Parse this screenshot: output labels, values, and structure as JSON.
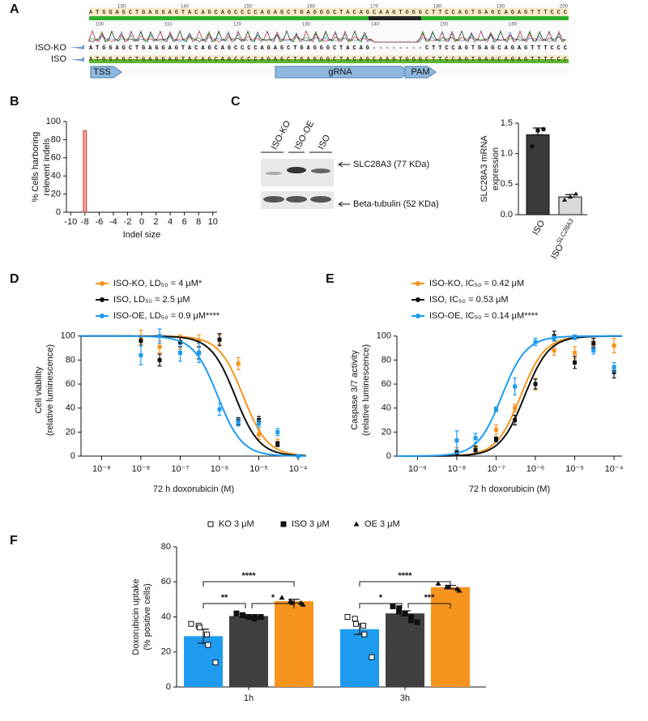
{
  "alignment": {
    "panel": "A",
    "ruler": [
      130,
      140,
      150,
      160,
      170,
      180,
      190,
      200
    ],
    "trace_ruler": [
      100,
      110,
      120,
      130,
      140,
      150,
      160
    ],
    "reference": "ATGGAGCTGAGGAGTACAGCAGCCCCAGAGCTGAGGGCTACAGCAAGTGGGCTTCCAGTGAGCAGAGTTTCCC",
    "rows": [
      {
        "name": "ISO-KO",
        "sequence": "ATGGAGCTGAGGAGTACAGCAGCCCCAGAGCTGAGGGCTACAG--------CTTCCAGTGAGCAGAGTTTCCC"
      },
      {
        "name": "ISO",
        "sequence": "ATGGAGCTGAGGAGTACAGCAGCCCCAGAGCTGAGGGCTACAGCAAGTGGGCTTCCAGTGAGCAGAGTTTCCC"
      }
    ],
    "features": [
      "TSS",
      "gRNA",
      "PAM"
    ]
  },
  "blot": {
    "panel": "C",
    "lanes": [
      "ISO-KO",
      "ISO-OE",
      "ISO"
    ],
    "bands": [
      "SLC28A3 (77 KDa)",
      "Beta-tubulin (52 KDa)"
    ]
  },
  "chart_data": [
    {
      "type": "bar",
      "panel": "B",
      "ylabel": [
        "% Cells harboring",
        "relevent indels"
      ],
      "xlabel": "Indel size",
      "x": [
        -8
      ],
      "values": [
        90
      ],
      "color": "#f4a6a0",
      "edge_color": "#c0392b",
      "xlim": [
        -10.6,
        10.6
      ],
      "xticks": [
        -10,
        -8,
        -6,
        -4,
        -2,
        0,
        2,
        4,
        6,
        8,
        10
      ],
      "ylim": [
        0,
        100
      ],
      "yticks": [
        0,
        20,
        40,
        60,
        80,
        100
      ]
    },
    {
      "type": "bar",
      "ylabel": [
        "SLC28A3 mRNA",
        "expression"
      ],
      "categories": [
        "ISO",
        "ISO"
      ],
      "category_superscripts": [
        null,
        "SLC28A3"
      ],
      "values": [
        1.31,
        0.29
      ],
      "errors": [
        0.11,
        0.04
      ],
      "colors": [
        "#3a3a3a",
        "#d9d9d9"
      ],
      "points": [
        [
          1.12,
          1.38,
          1.4
        ],
        [
          0.24,
          0.29,
          0.34
        ]
      ],
      "ylim": [
        0,
        1.5
      ],
      "yticks": [
        {
          "value": 0,
          "label": "0.0"
        },
        {
          "value": 0.5,
          "label": "0.5"
        },
        {
          "value": 1,
          "label": "1.0"
        },
        {
          "value": 1.5,
          "label": "1.5"
        }
      ]
    },
    {
      "type": "scatter",
      "panel": "D",
      "ylabel": [
        "Cell viability",
        "(relative luminescence)"
      ],
      "xlabel": "72 h doxorubicin (M)",
      "xscale": "log",
      "fit_direction": "down",
      "x": [
        1e-08,
        3e-08,
        1e-07,
        3e-07,
        1e-06,
        3e-06,
        1e-05,
        3e-05,
        0.0001
      ],
      "series": [
        {
          "name": "ISO-KO, LD₅₀ = 4 μM*",
          "color": "#f7941d",
          "ec50": 4e-06,
          "values": [
            99,
            91,
            95,
            96,
            97,
            77,
            18,
            11,
            0
          ],
          "errors": [
            6,
            5,
            6,
            5,
            4,
            5,
            4,
            3,
            1
          ]
        },
        {
          "name": "ISO, LD₅₀ = 2.5 μM",
          "color": "#111111",
          "ec50": 2.5e-06,
          "values": [
            96,
            80,
            95,
            86,
            97,
            29,
            30,
            10,
            0
          ],
          "errors": [
            4,
            5,
            4,
            5,
            5,
            3,
            3,
            2,
            1
          ]
        },
        {
          "name": "ISO-OE, LD₅₀ = 0.9 μM****",
          "color": "#1e9bef",
          "ec50": 9e-07,
          "values": [
            84,
            100,
            86,
            86,
            39,
            28,
            27,
            20,
            0
          ],
          "errors": [
            8,
            6,
            7,
            8,
            5,
            3,
            3,
            3,
            1
          ]
        }
      ],
      "xlim": [
        3e-10,
        0.00016
      ],
      "xticks": [
        {
          "value": 1e-09,
          "label": "10⁻⁹"
        },
        {
          "value": 1e-08,
          "label": "10⁻⁸"
        },
        {
          "value": 1e-07,
          "label": "10⁻⁷"
        },
        {
          "value": 1e-06,
          "label": "10⁻⁶"
        },
        {
          "value": 1e-05,
          "label": "10⁻⁵"
        },
        {
          "value": 0.0001,
          "label": "10⁻⁴"
        }
      ],
      "ylim": [
        0,
        110
      ],
      "yticks": [
        0,
        20,
        40,
        60,
        80,
        100
      ]
    },
    {
      "type": "scatter",
      "panel": "E",
      "ylabel": [
        "Caspase 3/7 activity",
        "(relative luminescence)"
      ],
      "xlabel": "72 h doxorubicin (M)",
      "xscale": "log",
      "fit_direction": "up",
      "x": [
        1e-08,
        3e-08,
        1e-07,
        3e-07,
        1e-06,
        3e-06,
        1e-05,
        3e-05,
        0.0001
      ],
      "series": [
        {
          "name": "ISO-KO, IC₅₀ = 0.42 μM",
          "color": "#f7941d",
          "ec50": 4.2e-07,
          "values": [
            4,
            6,
            22,
            40,
            60,
            88,
            86,
            92,
            92
          ],
          "errors": [
            3,
            3,
            4,
            3,
            5,
            4,
            5,
            4,
            6
          ]
        },
        {
          "name": "ISO, IC₅₀ = 0.53 μM",
          "color": "#111111",
          "ec50": 5.3e-07,
          "values": [
            3,
            5,
            14,
            30,
            60,
            100,
            78,
            94,
            70
          ],
          "errors": [
            2,
            3,
            2,
            4,
            4,
            4,
            5,
            4,
            5
          ]
        },
        {
          "name": "ISO-OE, IC₅₀ = 0.14 μM****",
          "color": "#1e9bef",
          "ec50": 1.4e-07,
          "values": [
            13,
            15,
            39,
            58,
            95,
            98,
            99,
            88,
            74
          ],
          "errors": [
            8,
            4,
            2,
            7,
            3,
            2,
            2,
            3,
            4
          ]
        }
      ],
      "xlim": [
        3e-10,
        0.00016
      ],
      "xticks": [
        {
          "value": 1e-09,
          "label": "10⁻⁹"
        },
        {
          "value": 1e-08,
          "label": "10⁻⁸"
        },
        {
          "value": 1e-07,
          "label": "10⁻⁷"
        },
        {
          "value": 1e-06,
          "label": "10⁻⁶"
        },
        {
          "value": 1e-05,
          "label": "10⁻⁵"
        },
        {
          "value": 0.0001,
          "label": "10⁻⁴"
        }
      ],
      "ylim": [
        0,
        110
      ],
      "yticks": [
        0,
        20,
        40,
        60,
        80,
        100
      ]
    },
    {
      "type": "bar",
      "panel": "F",
      "ylabel": [
        "Doxorubicin uptake",
        "(% positive cells)"
      ],
      "categories": [
        "1h",
        "3h"
      ],
      "series": [
        {
          "name": "KO 3 μM",
          "color": "#1e9bef",
          "marker": "open-square",
          "values": [
            29,
            33
          ],
          "errors": [
            4,
            3
          ],
          "points": [
            [
              36,
              35,
              34,
              30,
              24,
              14
            ],
            [
              40,
              39,
              36,
              35,
              30,
              17
            ]
          ]
        },
        {
          "name": "ISO 3 μM",
          "color": "#404040",
          "marker": "square",
          "values": [
            40.5,
            42
          ],
          "errors": [
            0.8,
            1.5
          ],
          "points": [
            [
              42,
              41,
              41,
              40,
              40,
              40,
              39,
              40
            ],
            [
              46,
              45,
              43,
              42,
              42,
              40,
              38,
              37
            ]
          ]
        },
        {
          "name": "OE 3 μM",
          "color": "#f7941d",
          "marker": "triangle",
          "values": [
            49,
            57
          ],
          "errors": [
            1,
            1
          ],
          "points": [
            [
              51,
              49,
              48,
              48,
              47
            ],
            [
              59,
              57,
              57,
              56,
              55
            ]
          ]
        }
      ],
      "significance": [
        [
          "****",
          "**",
          "*"
        ],
        [
          "****",
          "*",
          "***"
        ]
      ],
      "ylim": [
        0,
        80
      ],
      "yticks": [
        0,
        20,
        40,
        60,
        80
      ]
    }
  ]
}
